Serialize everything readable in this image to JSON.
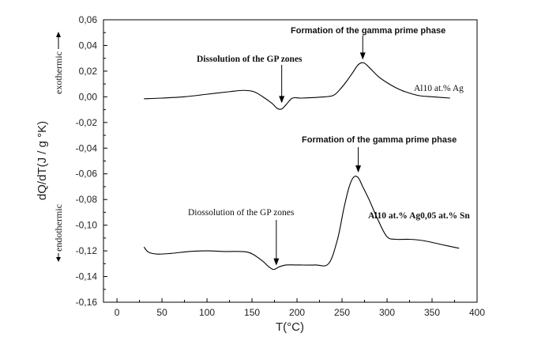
{
  "chart_data": {
    "type": "line",
    "xlabel": "T(°C)",
    "ylabel": "dQ/dT(J / g °K)",
    "xlim": [
      -15,
      400
    ],
    "ylim": [
      -0.16,
      0.06
    ],
    "x_ticks": [
      "0",
      "50",
      "100",
      "150",
      "200",
      "250",
      "300",
      "350",
      "400"
    ],
    "y_ticks": [
      "0,06",
      "0,04",
      "0,02",
      "0,00",
      "-0,02",
      "-0,04",
      "-0,06",
      "-0,08",
      "-0,10",
      "-0,12",
      "-0,14",
      "-0,16"
    ],
    "grid": false,
    "series": [
      {
        "name": "Al10 at.% Ag",
        "x": [
          30,
          50,
          75,
          100,
          125,
          140,
          152,
          162,
          172,
          178,
          183,
          188,
          195,
          205,
          225,
          240,
          248,
          255,
          262,
          268,
          274,
          280,
          290,
          300,
          310,
          320,
          335,
          350,
          370
        ],
        "y": [
          -0.0015,
          -0.001,
          0.0,
          0.002,
          0.004,
          0.005,
          0.004,
          0.0,
          -0.005,
          -0.009,
          -0.0095,
          -0.006,
          -0.001,
          -0.001,
          -0.0003,
          0.001,
          0.006,
          0.012,
          0.019,
          0.025,
          0.0265,
          0.023,
          0.016,
          0.011,
          0.007,
          0.004,
          0.001,
          0.0,
          -0.001
        ]
      },
      {
        "name": "Al10 at.% Ag0,05 at.% Sn",
        "x": [
          30,
          35,
          45,
          60,
          80,
          100,
          120,
          145,
          160,
          168,
          174,
          180,
          188,
          200,
          220,
          235,
          245,
          252,
          258,
          263,
          268,
          273,
          280,
          290,
          300,
          310,
          325,
          340,
          360,
          380
        ],
        "y": [
          -0.117,
          -0.121,
          -0.1225,
          -0.122,
          -0.1205,
          -0.12,
          -0.1205,
          -0.121,
          -0.127,
          -0.132,
          -0.1345,
          -0.1325,
          -0.131,
          -0.131,
          -0.131,
          -0.13,
          -0.111,
          -0.087,
          -0.07,
          -0.0625,
          -0.063,
          -0.07,
          -0.08,
          -0.096,
          -0.109,
          -0.111,
          -0.111,
          -0.112,
          -0.115,
          -0.118
        ]
      }
    ],
    "annotations": [
      {
        "text": "Formation of the gamma prime phase",
        "x": 273,
        "y": 0.0265
      },
      {
        "text": "Dissolution of the GP zones",
        "x": 183,
        "y": -0.008
      },
      {
        "text": "Formation of the gamma prime phase",
        "x": 268,
        "y": -0.0615
      },
      {
        "text": "Diossolution of the GP zones",
        "x": 177,
        "y": -0.1345
      }
    ],
    "series_labels": [
      "Al10 at.% Ag",
      "Al10 at.% Ag0,05 at.% Sn"
    ],
    "side_labels": {
      "exo": "exothermic",
      "endo": "endothermic"
    }
  }
}
